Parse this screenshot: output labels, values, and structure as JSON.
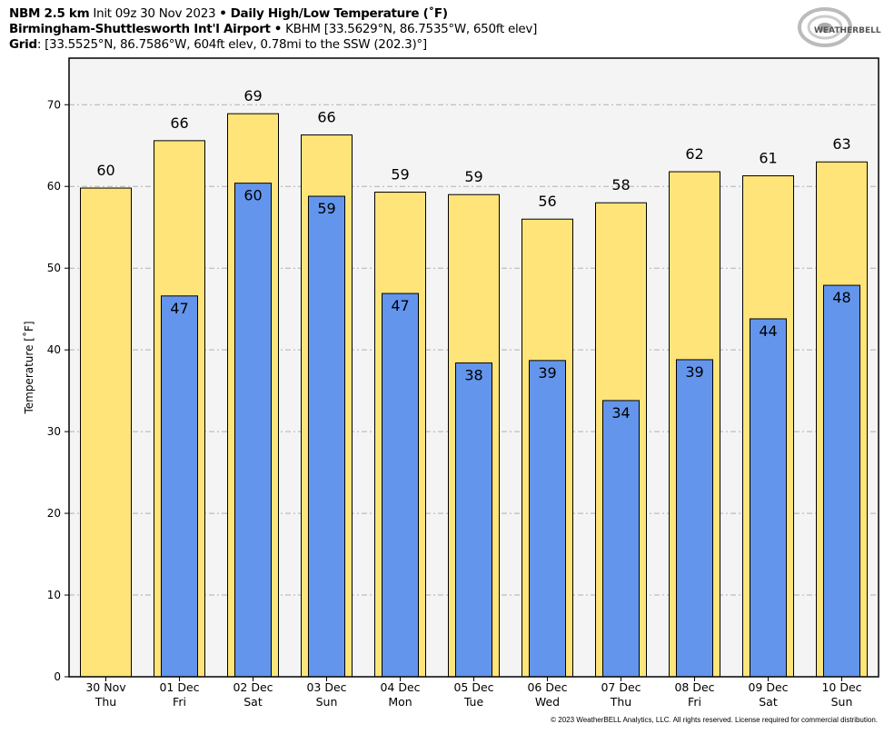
{
  "header": {
    "model": "NBM 2.5 km",
    "init": "Init 09z 30 Nov 2023",
    "sep": "•",
    "product": "Daily High/Low Temperature (˚F)",
    "station_name": "Birmingham-Shuttlesworth Int'l Airport",
    "station_info": "KBHM [33.5629°N, 86.7535°W, 650ft elev]",
    "grid_label": "Grid",
    "grid_info": ": [33.5525°N, 86.7586°W, 604ft elev, 0.78mi to the SSW (202.3)°]"
  },
  "logo": {
    "text": "WeatherBELL",
    "sub": "Analytics LLC"
  },
  "footer": {
    "copyright": "© 2023 WeatherBELL Analytics, LLC. All rights reserved. License required for commercial distribution."
  },
  "chart_data": {
    "type": "bar",
    "title": "Daily High/Low Temperature (˚F)",
    "xlabel": "",
    "ylabel": "Temperature [˚F]",
    "ylim": [
      0,
      75.7
    ],
    "yticks": [
      0,
      10,
      20,
      30,
      40,
      50,
      60,
      70
    ],
    "grid": true,
    "categories": [
      "30 Nov",
      "01 Dec",
      "02 Dec",
      "03 Dec",
      "04 Dec",
      "05 Dec",
      "06 Dec",
      "07 Dec",
      "08 Dec",
      "09 Dec",
      "10 Dec"
    ],
    "weekdays": [
      "Thu",
      "Fri",
      "Sat",
      "Sun",
      "Mon",
      "Tue",
      "Wed",
      "Thu",
      "Fri",
      "Sat",
      "Sun"
    ],
    "series": [
      {
        "key": "high",
        "color": "#FFE47A",
        "values": [
          59.8,
          65.6,
          68.9,
          66.3,
          59.3,
          59.0,
          56.0,
          58.0,
          61.8,
          61.3,
          63.0
        ],
        "labels": [
          "60",
          "66",
          "69",
          "66",
          "59",
          "59",
          "56",
          "58",
          "62",
          "61",
          "63"
        ]
      },
      {
        "key": "low",
        "color": "#6495ED",
        "values": [
          null,
          46.6,
          60.4,
          58.8,
          46.9,
          38.4,
          38.7,
          33.8,
          38.8,
          43.8,
          47.9
        ],
        "labels": [
          "",
          "47",
          "60",
          "59",
          "47",
          "38",
          "39",
          "34",
          "39",
          "44",
          "48"
        ]
      }
    ]
  }
}
